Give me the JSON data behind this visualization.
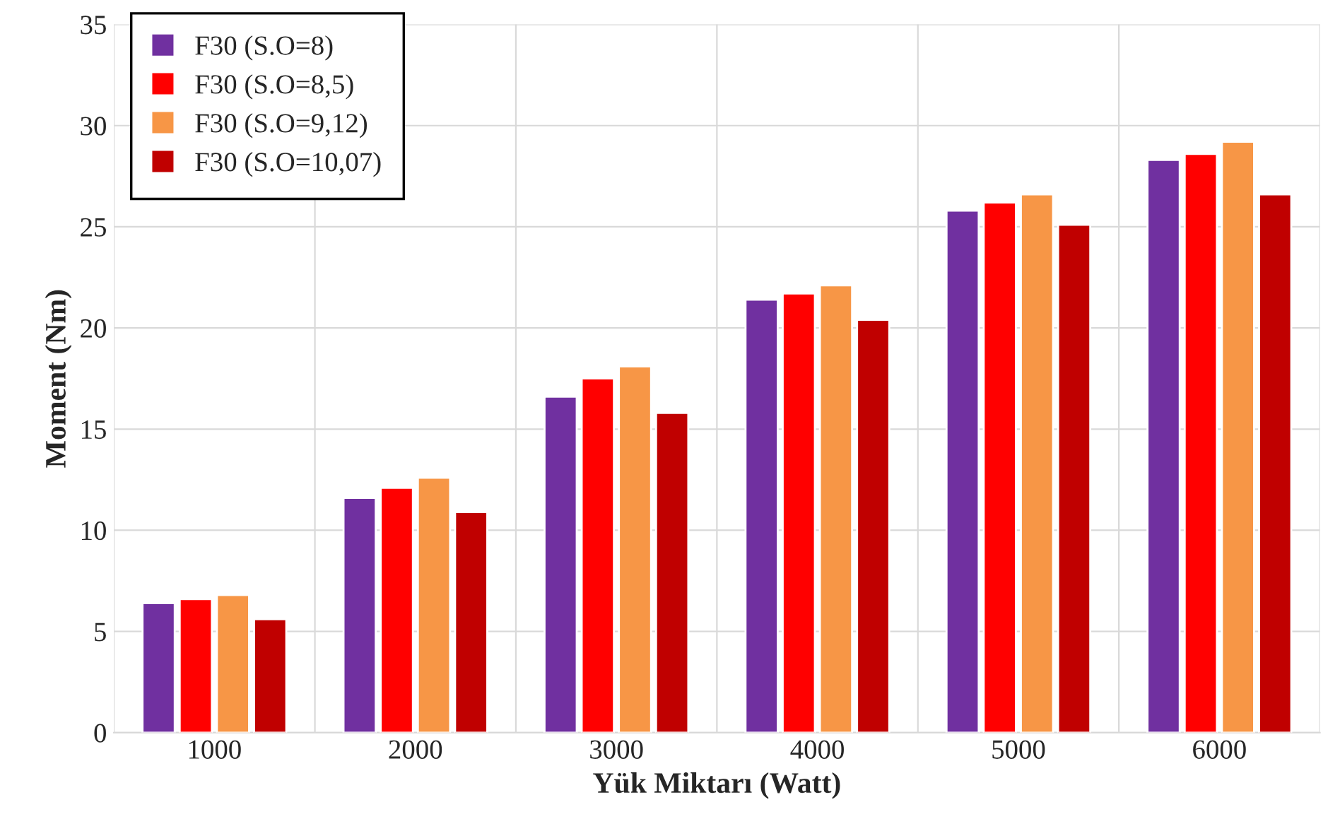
{
  "chart_data": {
    "type": "bar",
    "xlabel": "Yük Miktarı (Watt)",
    "ylabel": "Moment (Nm)",
    "categories": [
      "1000",
      "2000",
      "3000",
      "4000",
      "5000",
      "6000"
    ],
    "series": [
      {
        "name": "F30 (S.O=8)",
        "color": "#7030a0",
        "values": [
          6.4,
          11.6,
          16.6,
          21.4,
          25.8,
          28.3
        ]
      },
      {
        "name": "F30 (S.O=8,5)",
        "color": "#ff0000",
        "values": [
          6.6,
          12.1,
          17.5,
          21.7,
          26.2,
          28.6
        ]
      },
      {
        "name": "F30 (S.O=9,12)",
        "color": "#f79646",
        "values": [
          6.8,
          12.6,
          18.1,
          22.1,
          26.6,
          29.2
        ]
      },
      {
        "name": "F30 (S.O=10,07)",
        "color": "#c00000",
        "values": [
          5.6,
          10.9,
          15.8,
          20.4,
          25.1,
          26.6
        ]
      }
    ],
    "ylim": [
      0,
      35
    ],
    "yticks": [
      0,
      5,
      10,
      15,
      20,
      25,
      30,
      35
    ],
    "grid": true,
    "legend": "top left"
  }
}
